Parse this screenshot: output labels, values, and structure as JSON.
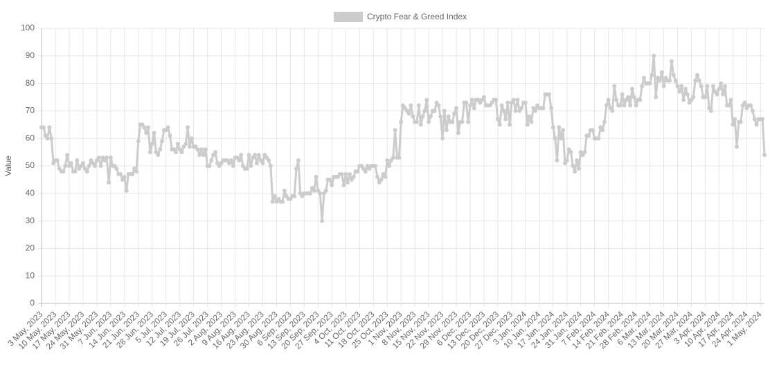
{
  "chart_data": {
    "type": "line",
    "y_label": "Value",
    "legend_position": "top",
    "grid": true,
    "ylim": [
      0,
      100
    ],
    "yticks": [
      0,
      10,
      20,
      30,
      40,
      50,
      60,
      70,
      80,
      90,
      100
    ],
    "categories": [
      "3 May, 2023",
      null,
      null,
      null,
      null,
      null,
      null,
      "10 May, 2023",
      null,
      null,
      null,
      null,
      null,
      null,
      "17 May, 2023",
      null,
      null,
      null,
      null,
      null,
      null,
      "24 May, 2023",
      null,
      null,
      null,
      null,
      null,
      null,
      "31 May, 2023",
      null,
      null,
      null,
      null,
      null,
      null,
      "7 Jun, 2023",
      null,
      null,
      null,
      null,
      null,
      null,
      "14 Jun, 2023",
      null,
      null,
      null,
      null,
      null,
      null,
      "21 Jun, 2023",
      null,
      null,
      null,
      null,
      null,
      null,
      "28 Jun, 2023",
      null,
      null,
      null,
      null,
      null,
      null,
      "5 Jul, 2023",
      null,
      null,
      null,
      null,
      null,
      null,
      "12 Jul, 2023",
      null,
      null,
      null,
      null,
      null,
      null,
      "19 Jul, 2023",
      null,
      null,
      null,
      null,
      null,
      null,
      "26 Jul, 2023",
      null,
      null,
      null,
      null,
      null,
      null,
      "2 Aug, 2023",
      null,
      null,
      null,
      null,
      null,
      null,
      "9 Aug, 2023",
      null,
      null,
      null,
      null,
      null,
      null,
      "16 Aug, 2023",
      null,
      null,
      null,
      null,
      null,
      null,
      "23 Aug, 2023",
      null,
      null,
      null,
      null,
      null,
      null,
      "30 Aug, 2023",
      null,
      null,
      null,
      null,
      null,
      null,
      "6 Sep, 2023",
      null,
      null,
      null,
      null,
      null,
      null,
      "13 Sep, 2023",
      null,
      null,
      null,
      null,
      null,
      null,
      "20 Sep, 2023",
      null,
      null,
      null,
      null,
      null,
      null,
      "27 Sep, 2023",
      null,
      null,
      null,
      null,
      null,
      null,
      "4 Oct, 2023",
      null,
      null,
      null,
      null,
      null,
      null,
      "11 Oct, 2023",
      null,
      null,
      null,
      null,
      null,
      null,
      "18 Oct, 2023",
      null,
      null,
      null,
      null,
      null,
      null,
      "25 Oct, 2023",
      null,
      null,
      null,
      null,
      null,
      null,
      "1 Nov, 2023",
      null,
      null,
      null,
      null,
      null,
      null,
      "8 Nov, 2023",
      null,
      null,
      null,
      null,
      null,
      null,
      "15 Nov, 2023",
      null,
      null,
      null,
      null,
      null,
      null,
      "22 Nov, 2023",
      null,
      null,
      null,
      null,
      null,
      null,
      "29 Nov, 2023",
      null,
      null,
      null,
      null,
      null,
      null,
      "6 Dec, 2023",
      null,
      null,
      null,
      null,
      null,
      null,
      "13 Dec, 2023",
      null,
      null,
      null,
      null,
      null,
      null,
      "20 Dec, 2023",
      null,
      null,
      null,
      null,
      null,
      null,
      "27 Dec, 2023",
      null,
      null,
      null,
      null,
      null,
      null,
      "3 Jan, 2024",
      null,
      null,
      null,
      null,
      null,
      null,
      "10 Jan, 2024",
      null,
      null,
      null,
      null,
      null,
      null,
      "17 Jan, 2024",
      null,
      null,
      null,
      null,
      null,
      null,
      "24 Jan, 2024",
      null,
      null,
      null,
      null,
      null,
      null,
      "31 Jan, 2024",
      null,
      null,
      null,
      null,
      null,
      null,
      "7 Feb, 2024",
      null,
      null,
      null,
      null,
      null,
      null,
      "14 Feb, 2024",
      null,
      null,
      null,
      null,
      null,
      null,
      "21 Feb, 2024",
      null,
      null,
      null,
      null,
      null,
      null,
      "28 Feb, 2024",
      null,
      null,
      null,
      null,
      null,
      null,
      "6 Mar, 2024",
      null,
      null,
      null,
      null,
      null,
      null,
      "13 Mar, 2024",
      null,
      null,
      null,
      null,
      null,
      null,
      "20 Mar, 2024",
      null,
      null,
      null,
      null,
      null,
      null,
      "27 Mar, 2024",
      null,
      null,
      null,
      null,
      null,
      null,
      "3 Apr, 2024",
      null,
      null,
      null,
      null,
      null,
      null,
      "10 Apr, 2024",
      null,
      null,
      null,
      null,
      null,
      null,
      "17 Apr, 2024",
      null,
      null,
      null,
      null,
      null,
      null,
      "24 Apr, 2024",
      null,
      null,
      null,
      null,
      null,
      null,
      "1 May, 2024",
      null,
      null
    ],
    "series": [
      {
        "name": "Crypto Fear & Greed Index",
        "color": "#cccccc",
        "values": [
          64,
          64,
          61,
          60,
          64,
          60,
          51,
          52,
          52,
          49,
          48,
          48,
          50,
          54,
          50,
          51,
          48,
          48,
          52,
          49,
          50,
          51,
          49,
          48,
          50,
          52,
          51,
          50,
          52,
          53,
          50,
          53,
          52,
          53,
          44,
          53,
          50,
          50,
          49,
          47,
          47,
          45,
          46,
          41,
          47,
          47,
          47,
          49,
          48,
          59,
          65,
          65,
          64,
          62,
          64,
          55,
          58,
          62,
          55,
          54,
          56,
          59,
          63,
          63,
          64,
          61,
          56,
          56,
          55,
          58,
          56,
          55,
          57,
          58,
          64,
          57,
          60,
          57,
          57,
          56,
          54,
          56,
          54,
          56,
          50,
          50,
          52,
          54,
          55,
          51,
          50,
          51,
          52,
          52,
          52,
          51,
          52,
          50,
          53,
          53,
          52,
          54,
          50,
          49,
          49,
          54,
          50,
          53,
          54,
          51,
          54,
          52,
          51,
          54,
          53,
          52,
          50,
          37,
          39,
          37,
          38,
          37,
          37,
          41,
          39,
          38,
          38,
          39,
          39,
          49,
          52,
          40,
          39,
          40,
          40,
          40,
          40,
          42,
          41,
          46,
          41,
          40,
          30,
          40,
          41,
          45,
          45,
          43,
          46,
          46,
          46,
          47,
          47,
          43,
          47,
          44,
          47,
          45,
          46,
          48,
          48,
          50,
          50,
          49,
          48,
          50,
          49,
          50,
          50,
          50,
          46,
          44,
          45,
          47,
          46,
          52,
          50,
          52,
          53,
          63,
          53,
          53,
          66,
          72,
          71,
          70,
          69,
          72,
          68,
          66,
          66,
          72,
          65,
          68,
          70,
          74,
          66,
          68,
          70,
          70,
          73,
          72,
          68,
          60,
          70,
          63,
          68,
          66,
          66,
          69,
          71,
          62,
          66,
          66,
          73,
          73,
          66,
          72,
          74,
          71,
          74,
          74,
          73,
          74,
          75,
          72,
          72,
          72,
          73,
          74,
          74,
          67,
          65,
          72,
          70,
          67,
          73,
          65,
          73,
          74,
          70,
          74,
          70,
          71,
          73,
          73,
          65,
          68,
          66,
          71,
          70,
          72,
          71,
          71,
          71,
          76,
          76,
          76,
          71,
          64,
          60,
          52,
          64,
          60,
          63,
          51,
          52,
          56,
          55,
          50,
          48,
          52,
          49,
          55,
          54,
          55,
          61,
          61,
          63,
          63,
          60,
          60,
          60,
          64,
          63,
          66,
          72,
          74,
          71,
          70,
          79,
          74,
          72,
          72,
          76,
          72,
          74,
          75,
          72,
          78,
          75,
          72,
          74,
          74,
          79,
          82,
          80,
          80,
          80,
          83,
          90,
          75,
          82,
          81,
          84,
          79,
          82,
          81,
          81,
          88,
          83,
          81,
          79,
          77,
          79,
          74,
          78,
          76,
          73,
          74,
          75,
          81,
          83,
          81,
          79,
          75,
          75,
          79,
          71,
          70,
          79,
          77,
          76,
          78,
          80,
          76,
          79,
          72,
          72,
          74,
          65,
          67,
          57,
          66,
          66,
          72,
          73,
          71,
          72,
          72,
          70,
          67,
          65,
          67,
          67,
          67,
          54
        ]
      }
    ]
  }
}
